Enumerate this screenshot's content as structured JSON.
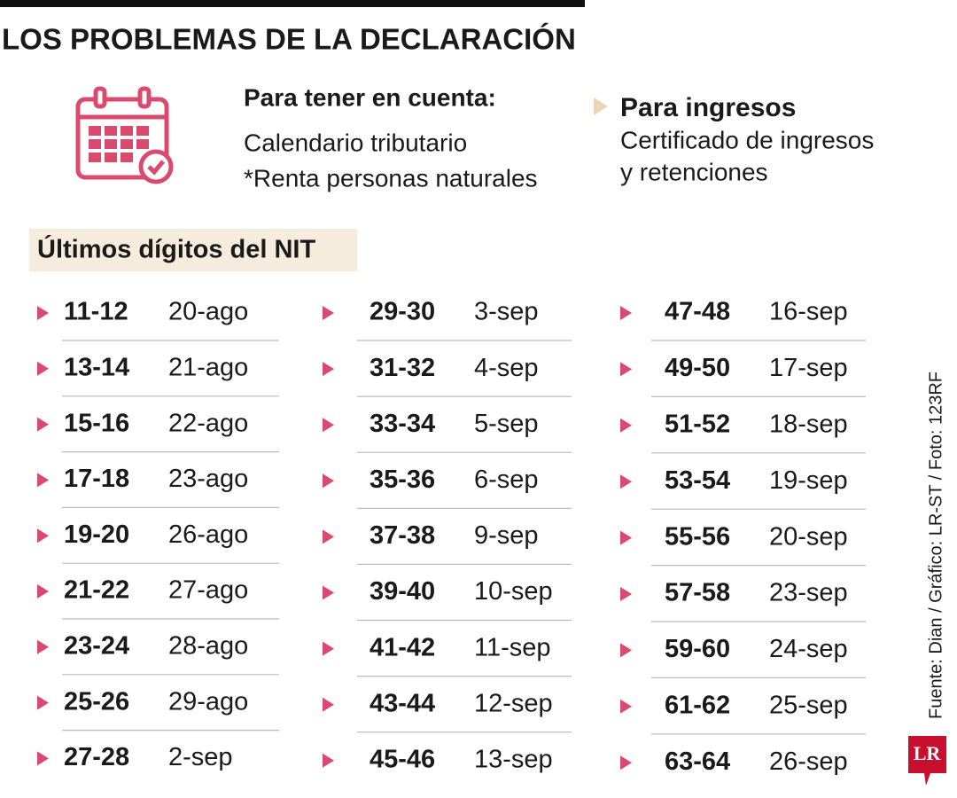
{
  "header": {
    "title": "LOS PROBLEMAS DE LA DECLARACIÓN"
  },
  "info": {
    "heading": "Para tener en cuenta:",
    "lines": [
      "Calendario tributario",
      "*Renta personas naturales"
    ]
  },
  "aside": {
    "heading": "Para ingresos",
    "lines": [
      "Certificado de ingresos",
      "y retenciones"
    ]
  },
  "section": {
    "label": "Últimos dígitos del NIT"
  },
  "columns": [
    [
      [
        "11-12",
        "20-ago"
      ],
      [
        "13-14",
        "21-ago"
      ],
      [
        "15-16",
        "22-ago"
      ],
      [
        "17-18",
        "23-ago"
      ],
      [
        "19-20",
        "26-ago"
      ],
      [
        "21-22",
        "27-ago"
      ],
      [
        "23-24",
        "28-ago"
      ],
      [
        "25-26",
        "29-ago"
      ],
      [
        "27-28",
        "2-sep"
      ]
    ],
    [
      [
        "29-30",
        "3-sep"
      ],
      [
        "31-32",
        "4-sep"
      ],
      [
        "33-34",
        "5-sep"
      ],
      [
        "35-36",
        "6-sep"
      ],
      [
        "37-38",
        "9-sep"
      ],
      [
        "39-40",
        "10-sep"
      ],
      [
        "41-42",
        "11-sep"
      ],
      [
        "43-44",
        "12-sep"
      ],
      [
        "45-46",
        "13-sep"
      ]
    ],
    [
      [
        "47-48",
        "16-sep"
      ],
      [
        "49-50",
        "17-sep"
      ],
      [
        "51-52",
        "18-sep"
      ],
      [
        "53-54",
        "19-sep"
      ],
      [
        "55-56",
        "20-sep"
      ],
      [
        "57-58",
        "23-sep"
      ],
      [
        "59-60",
        "24-sep"
      ],
      [
        "61-62",
        "25-sep"
      ],
      [
        "63-64",
        "26-sep"
      ]
    ]
  ],
  "footer": {
    "source": "Fuente: Dian / Gráfico: LR-ST / Foto: 123RF",
    "logo": "LR"
  }
}
